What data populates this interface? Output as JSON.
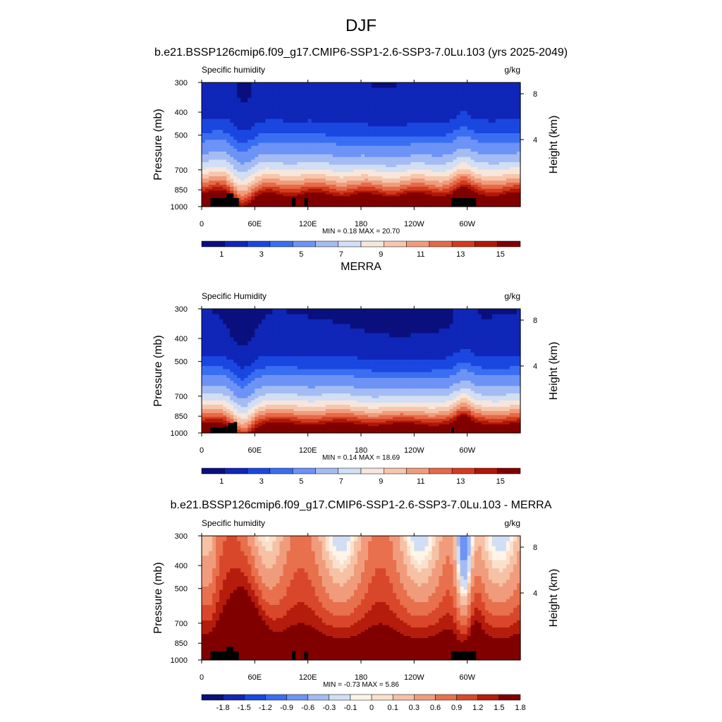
{
  "figure": {
    "title": "DJF"
  },
  "palette": [
    "#0a0f7e",
    "#0f26b8",
    "#1a47e0",
    "#3a6ef2",
    "#6c93f5",
    "#a4bcf3",
    "#d1def3",
    "#f6e6dc",
    "#f6c6ad",
    "#f09c7c",
    "#e56a48",
    "#d43a1d",
    "#b01706",
    "#800000"
  ],
  "palette_diff": [
    "#0a0f7e",
    "#0f26b8",
    "#1a47e0",
    "#3a6ef2",
    "#6c93f5",
    "#a4bcf3",
    "#d1def3",
    "#fff4e8",
    "#fbe0cc",
    "#f6c1a4",
    "#f09c7c",
    "#e8704c",
    "#d9472a",
    "#b51c0c",
    "#800000"
  ],
  "chart_data": [
    {
      "type": "heatmap",
      "panel_title": "b.e21.BSSP126cmip6.f09_g17.CMIP6-SSP1-2.6-SSP3-7.0Lu.103 (yrs 2025-2049)",
      "left_label": "Specific humidity",
      "right_label": "g/kg",
      "xlabel": "",
      "ylabel": "Pressure (mb)",
      "ylabel_right": "Height (km)",
      "x_ticks": [
        "0",
        "60E",
        "120E",
        "180",
        "120W",
        "60W"
      ],
      "x_range": [
        0,
        360
      ],
      "y_ticks": [
        "300",
        "400",
        "500",
        "700",
        "850",
        "1000"
      ],
      "y_range": [
        300,
        1000
      ],
      "y_ticks_right": [
        "8",
        "4"
      ],
      "stats": "MIN =   0.18  MAX =  20.70",
      "colorbar_labels": [
        "1",
        "3",
        "5",
        "7",
        "9",
        "11",
        "13",
        "15"
      ],
      "colorbar_levels": [
        0.5,
        1,
        1.5,
        2,
        3,
        4,
        5,
        6,
        7,
        8,
        9,
        10,
        11,
        12,
        13,
        14,
        15
      ]
    },
    {
      "type": "heatmap",
      "panel_title": "MERRA",
      "left_label": "Specific Humidity",
      "right_label": "g/kg",
      "xlabel": "",
      "ylabel": "Pressure (mb)",
      "ylabel_right": "Height (km)",
      "x_ticks": [
        "0",
        "60E",
        "120E",
        "180",
        "120W",
        "60W"
      ],
      "x_range": [
        0,
        360
      ],
      "y_ticks": [
        "300",
        "400",
        "500",
        "700",
        "850",
        "1000"
      ],
      "y_range": [
        300,
        1000
      ],
      "y_ticks_right": [
        "8",
        "4"
      ],
      "stats": "MIN =   0.14  MAX =  18.69",
      "colorbar_labels": [
        "1",
        "3",
        "5",
        "7",
        "9",
        "11",
        "13",
        "15"
      ],
      "colorbar_levels": [
        0.5,
        1,
        1.5,
        2,
        3,
        4,
        5,
        6,
        7,
        8,
        9,
        10,
        11,
        12,
        13,
        14,
        15
      ]
    },
    {
      "type": "heatmap",
      "panel_title": "b.e21.BSSP126cmip6.f09_g17.CMIP6-SSP1-2.6-SSP3-7.0Lu.103 - MERRA",
      "left_label": "Specific humidity",
      "right_label": "g/kg",
      "xlabel": "",
      "ylabel": "Pressure (mb)",
      "ylabel_right": "Height (km)",
      "x_ticks": [
        "0",
        "60E",
        "120E",
        "180",
        "120W",
        "60W"
      ],
      "x_range": [
        0,
        360
      ],
      "y_ticks": [
        "300",
        "400",
        "500",
        "700",
        "850",
        "1000"
      ],
      "y_range": [
        300,
        1000
      ],
      "y_ticks_right": [
        "8",
        "4"
      ],
      "stats": "MIN =  -0.73  MAX =   5.86",
      "colorbar_labels": [
        "-1.8",
        "-1.5",
        "-1.2",
        "-0.9",
        "-0.6",
        "-0.3",
        "-0.1",
        "0",
        "0.1",
        "0.3",
        "0.6",
        "0.9",
        "1.2",
        "1.5",
        "1.8"
      ],
      "colorbar_levels": [
        -1.8,
        -1.5,
        -1.2,
        -0.9,
        -0.6,
        -0.3,
        -0.1,
        0,
        0.1,
        0.3,
        0.6,
        0.9,
        1.2,
        1.5,
        1.8
      ]
    }
  ]
}
